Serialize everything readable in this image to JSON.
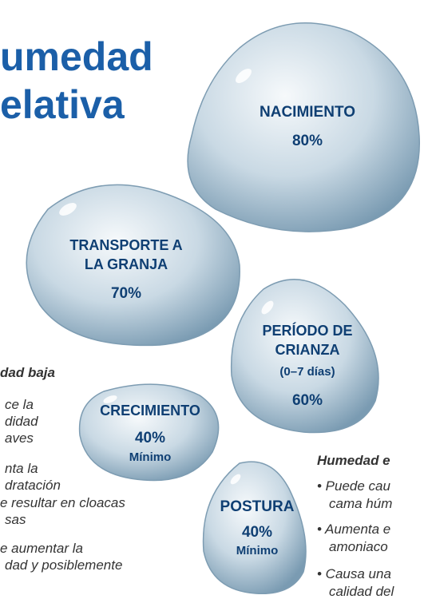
{
  "title": {
    "lines": [
      "umedad",
      "elativa"
    ]
  },
  "drops": [
    {
      "label": [
        "NACIMIENTO"
      ],
      "value": "80%"
    },
    {
      "label": [
        "TRANSPORTE A",
        "LA GRANJA"
      ],
      "value": "70%"
    },
    {
      "label": [
        "PERÍODO DE",
        "CRIANZA"
      ],
      "note": "(0–7 días)",
      "value": "60%"
    },
    {
      "label": [
        "CRECIMIENTO"
      ],
      "value": "40%",
      "note": "Mínimo"
    },
    {
      "label": [
        "POSTURA"
      ],
      "value": "40%",
      "note": "Mínimo"
    }
  ],
  "low_humidity": {
    "heading": "dad baja",
    "items": [
      [
        "ce la",
        "didad",
        "aves"
      ],
      [
        "nta la",
        "dratación"
      ],
      [
        "e resultar en cloacas",
        "sas"
      ],
      [
        "e aumentar la",
        "dad y posiblemente"
      ]
    ]
  },
  "high_humidity": {
    "heading": "Humedad e",
    "items": [
      [
        "• Puede cau",
        "cama húm"
      ],
      [
        "• Aumenta e",
        "amoniaco"
      ],
      [
        "• Causa una",
        "calidad del"
      ]
    ]
  }
}
